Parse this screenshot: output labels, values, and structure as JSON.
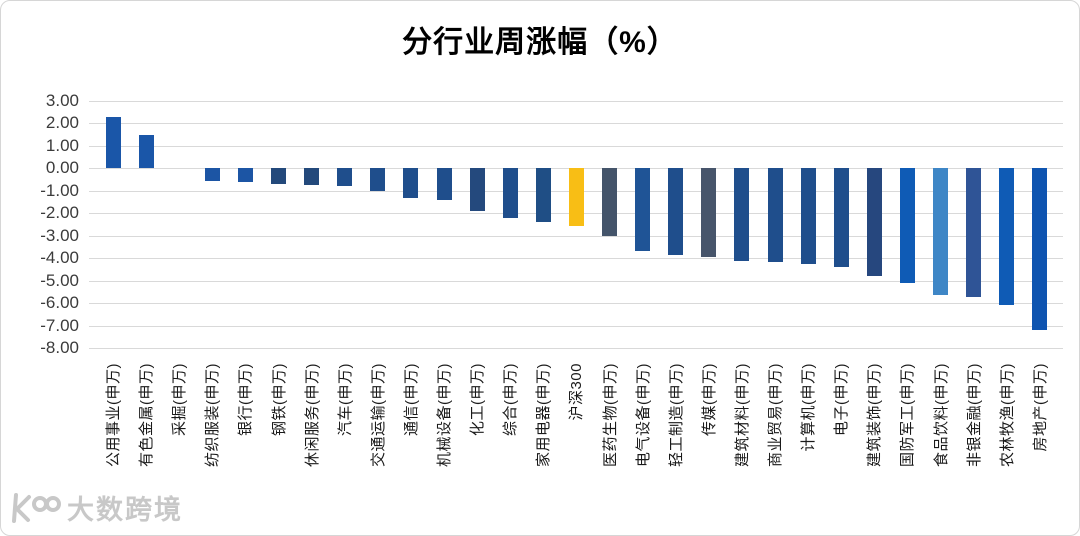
{
  "title": "分行业周涨幅（%）",
  "watermark": {
    "logo": "kcross-logo",
    "text": "大数跨境"
  },
  "chart_data": {
    "type": "bar",
    "title": "分行业周涨幅（%）",
    "categories": [
      "公用事业(申万)",
      "有色金属(申万)",
      "采掘(申万)",
      "纺织服装(申万)",
      "银行(申万)",
      "钢铁(申万)",
      "休闲服务(申万)",
      "汽车(申万)",
      "交通运输(申万)",
      "通信(申万)",
      "机械设备(申万)",
      "化工(申万)",
      "综合(申万)",
      "家用电器(申万)",
      "沪深300",
      "医药生物(申万)",
      "电气设备(申万)",
      "轻工制造(申万)",
      "传媒(申万)",
      "建筑材料(申万)",
      "商业贸易(申万)",
      "计算机(申万)",
      "电子(申万)",
      "建筑装饰(申万)",
      "国防军工(申万)",
      "食品饮料(申万)",
      "非银金融(申万)",
      "农林牧渔(申万)",
      "房地产(申万)"
    ],
    "values": [
      2.3,
      1.5,
      0.0,
      -0.55,
      -0.6,
      -0.68,
      -0.75,
      -0.8,
      -1.0,
      -1.3,
      -1.4,
      -1.9,
      -2.2,
      -2.4,
      -2.55,
      -3.0,
      -3.7,
      -3.85,
      -3.95,
      -4.12,
      -4.16,
      -4.28,
      -4.38,
      -4.78,
      -5.1,
      -5.65,
      -5.75,
      -6.1,
      -7.2
    ],
    "bar_colors": [
      "#1A56A8",
      "#1A56A8",
      "#1F4E8C",
      "#1C55A4",
      "#1C55A4",
      "#23497B",
      "#23497B",
      "#1F4E8C",
      "#1F4E8C",
      "#1F4E8C",
      "#1F4E8C",
      "#24497D",
      "#1F4E8C",
      "#1F4E85",
      "#F8BE15",
      "#44546A",
      "#1F5496",
      "#1F4E8C",
      "#47556B",
      "#1F4E8C",
      "#1F4E8C",
      "#1F4E8C",
      "#1F4E8C",
      "#26477E",
      "#0F5BB5",
      "#3E86C6",
      "#2F5496",
      "#0F5BB5",
      "#0E54B0"
    ],
    "highlight_category": "沪深300",
    "highlight_color": "#F8BE15",
    "default_bar_color": "#1F4E8C",
    "yticks": [
      "3.00",
      "2.00",
      "1.00",
      "0.00",
      "-1.00",
      "-2.00",
      "-3.00",
      "-4.00",
      "-5.00",
      "-6.00",
      "-7.00",
      "-8.00"
    ],
    "ytick_values": [
      3,
      2,
      1,
      0,
      -1,
      -2,
      -3,
      -4,
      -5,
      -6,
      -7,
      -8
    ],
    "ylim": [
      -8,
      3
    ],
    "xlabel": "",
    "ylabel": "",
    "grid": true,
    "gridline_color": "#D9D9D9",
    "legend": "none"
  }
}
